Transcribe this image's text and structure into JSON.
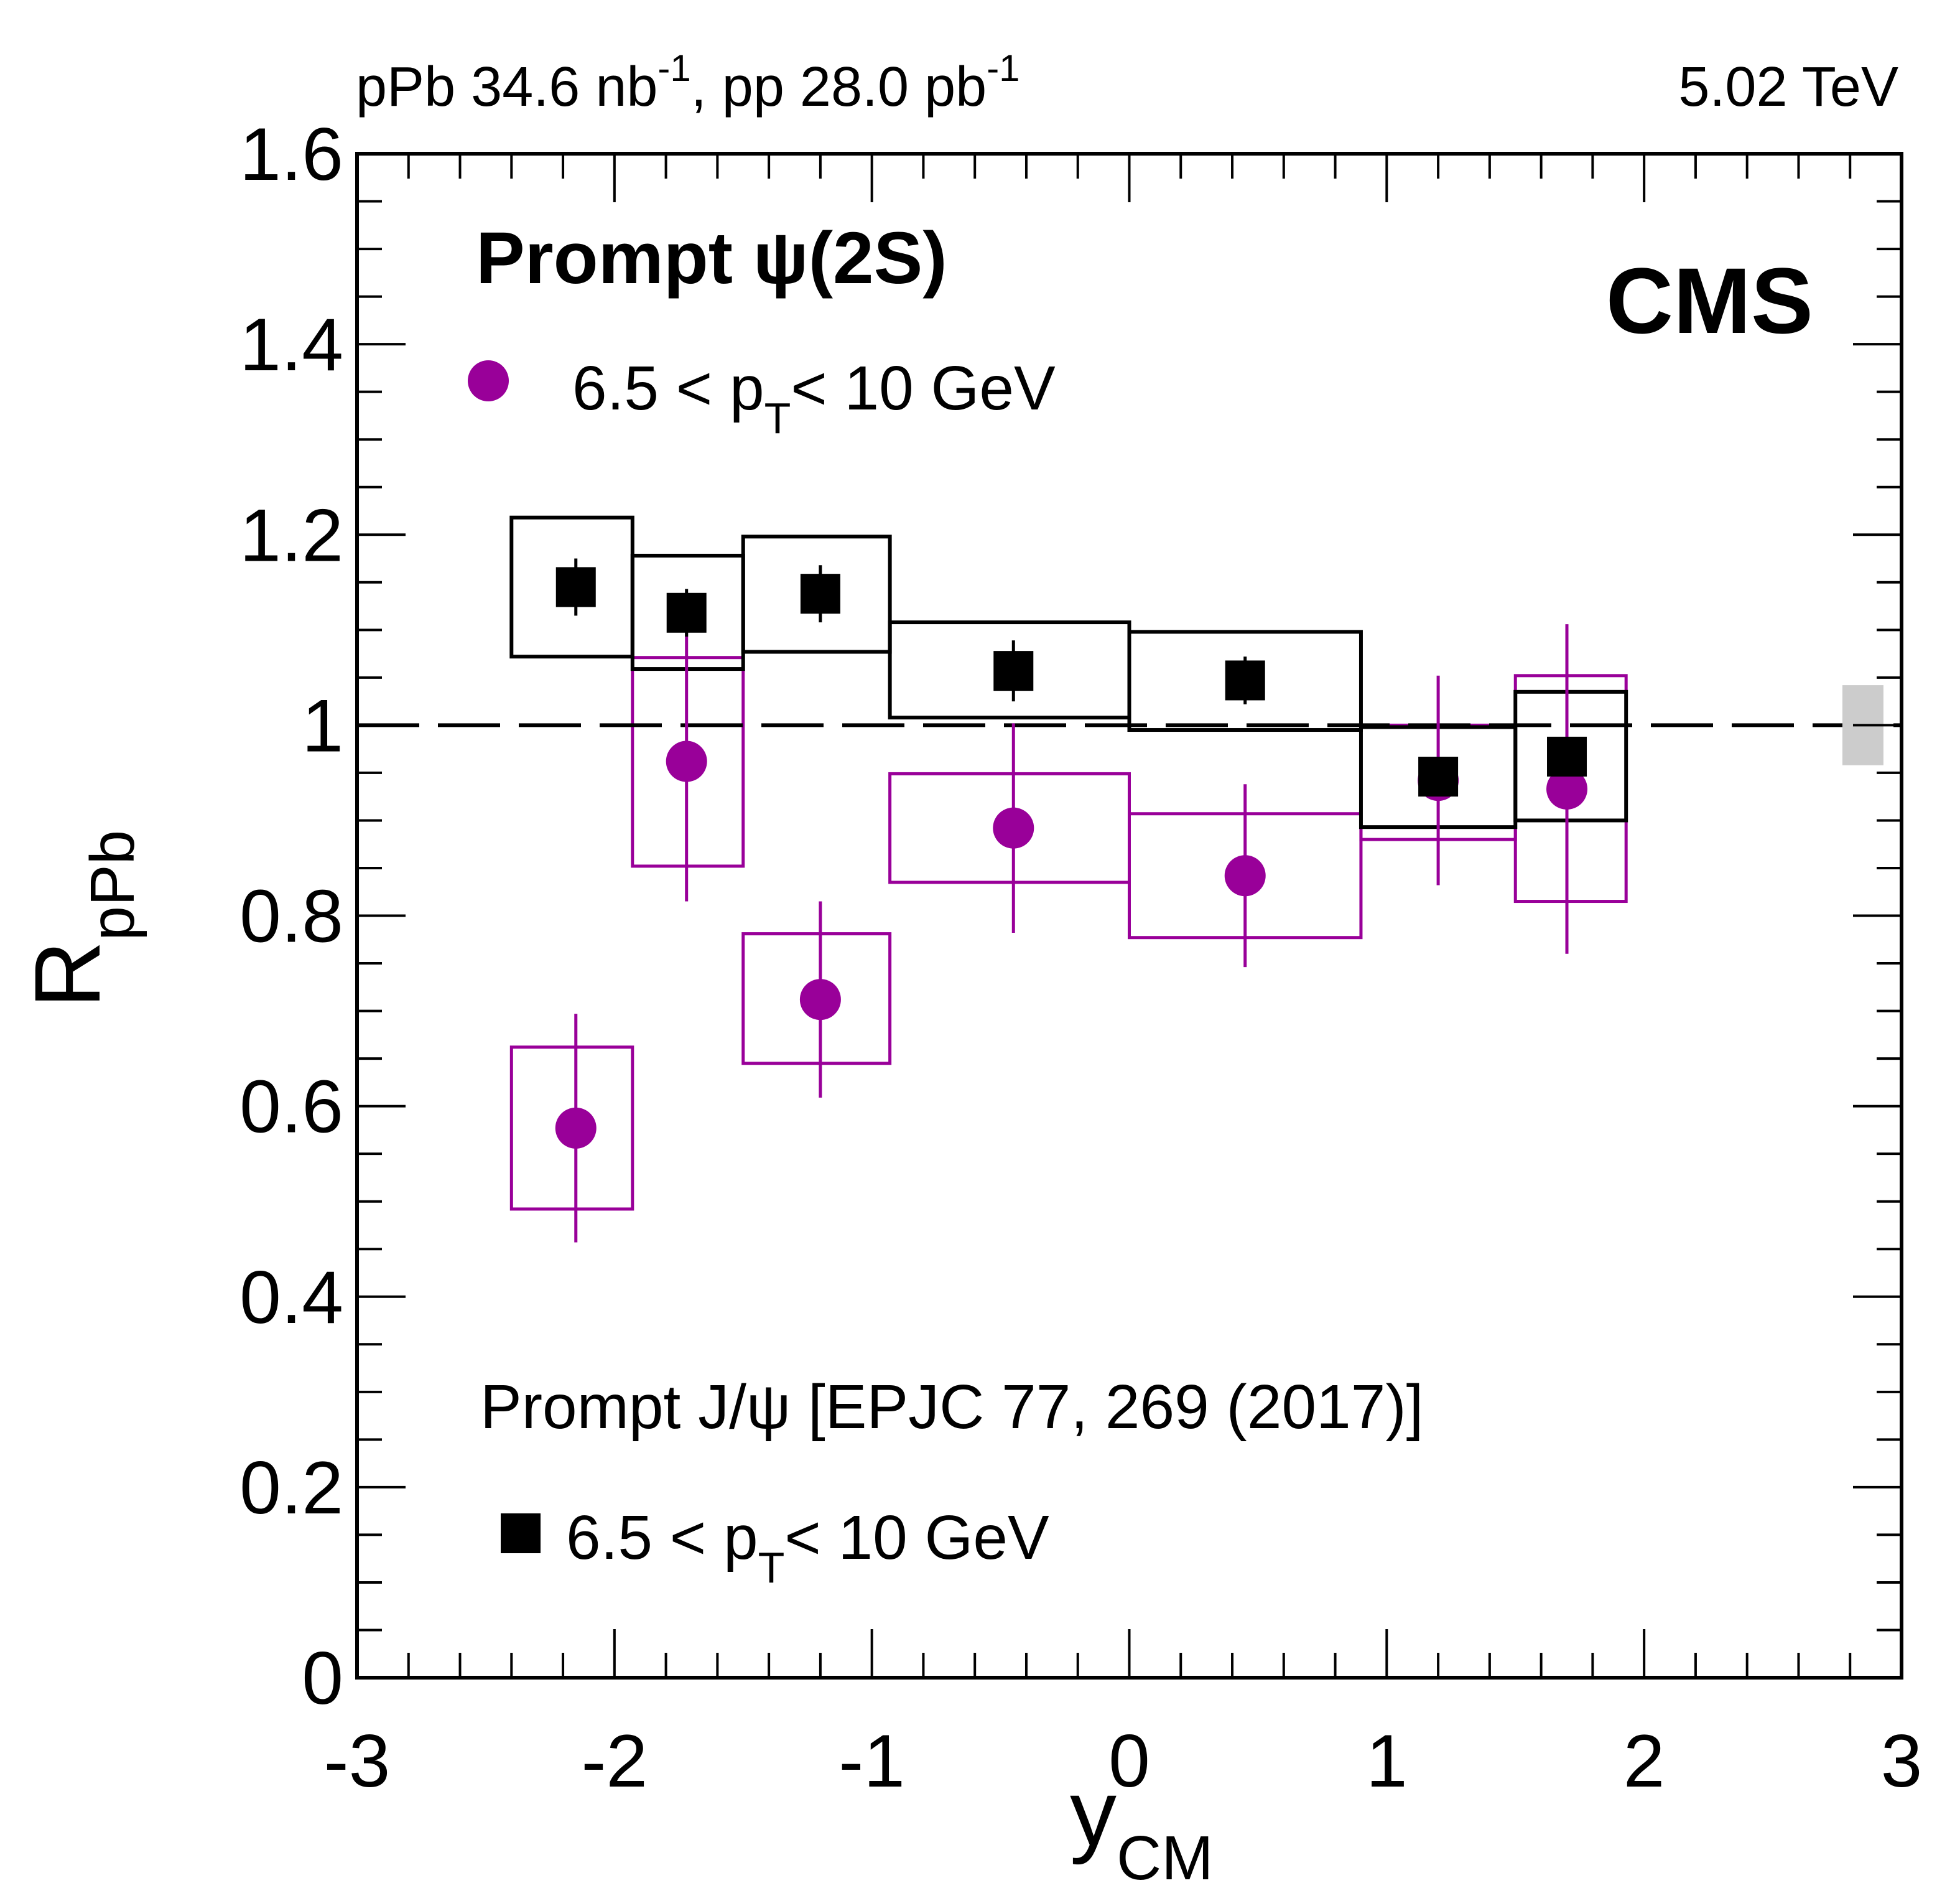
{
  "chart_data": {
    "type": "scatter",
    "title": "",
    "header_left": {
      "text_a": "pPb 34.6 nb",
      "sup_a": "-1",
      "text_b": ", pp 28.0 pb",
      "sup_b": "-1"
    },
    "header_right": "5.02 TeV",
    "experiment_label": "CMS",
    "xlabel": {
      "main": "y",
      "sub": "CM"
    },
    "ylabel": {
      "main": "R",
      "sub": "pPb"
    },
    "xlim": [
      -3,
      3
    ],
    "ylim": [
      0,
      1.6
    ],
    "x_ticks": [
      "-3",
      "-2",
      "-1",
      "0",
      "1",
      "2",
      "3"
    ],
    "y_ticks": [
      "0",
      "0.2",
      "0.4",
      "0.6",
      "0.8",
      "1",
      "1.2",
      "1.4",
      "1.6"
    ],
    "reference_line": {
      "y": 1,
      "style": "dashed"
    },
    "global_uncertainty": {
      "x": 2.85,
      "low": 0.958,
      "high": 1.042,
      "color": "#cccccc"
    },
    "legend_psi2s": {
      "title": "Prompt  ψ(2S)",
      "entry_pre": "6.5 < p",
      "entry_sub": "T",
      "entry_post": "< 10 GeV"
    },
    "legend_jpsi": {
      "title": "Prompt J/ψ [EPJC 77, 269 (2017)]",
      "entry_pre": "6.5 < p",
      "entry_sub": "T",
      "entry_post": "< 10 GeV"
    },
    "series": [
      {
        "name": "Prompt psi(2S), 6.5 < pT < 10 GeV",
        "marker": "circle",
        "color": "#990099",
        "points": [
          {
            "x": -2.15,
            "y": 0.577,
            "stat": 0.12,
            "xlo": -2.4,
            "xhi": -1.93,
            "syslo": 0.492,
            "syshi": 0.662
          },
          {
            "x": -1.72,
            "y": 0.962,
            "stat": 0.147,
            "xlo": -1.93,
            "xhi": -1.5,
            "syslo": 0.852,
            "syshi": 1.071
          },
          {
            "x": -1.2,
            "y": 0.712,
            "stat": 0.103,
            "xlo": -1.5,
            "xhi": -0.93,
            "syslo": 0.645,
            "syshi": 0.781
          },
          {
            "x": -0.45,
            "y": 0.892,
            "stat": 0.11,
            "xlo": -0.93,
            "xhi": 0.0,
            "syslo": 0.835,
            "syshi": 0.949
          },
          {
            "x": 0.45,
            "y": 0.842,
            "stat": 0.096,
            "xlo": 0.0,
            "xhi": 0.9,
            "syslo": 0.777,
            "syshi": 0.907
          },
          {
            "x": 1.2,
            "y": 0.942,
            "stat": 0.11,
            "xlo": 0.9,
            "xhi": 1.5,
            "syslo": 0.88,
            "syshi": 1.0
          },
          {
            "x": 1.7,
            "y": 0.933,
            "stat": 0.173,
            "xlo": 1.5,
            "xhi": 1.93,
            "syslo": 0.815,
            "syshi": 1.052
          }
        ]
      },
      {
        "name": "Prompt J/psi [EPJC 77, 269 (2017)], 6.5 < pT < 10 GeV",
        "marker": "square",
        "color": "#000000",
        "points": [
          {
            "x": -2.15,
            "y": 1.145,
            "stat": 0.03,
            "xlo": -2.4,
            "xhi": -1.93,
            "syslo": 1.072,
            "syshi": 1.218
          },
          {
            "x": -1.72,
            "y": 1.118,
            "stat": 0.025,
            "xlo": -1.93,
            "xhi": -1.5,
            "syslo": 1.059,
            "syshi": 1.178
          },
          {
            "x": -1.2,
            "y": 1.138,
            "stat": 0.03,
            "xlo": -1.5,
            "xhi": -0.93,
            "syslo": 1.077,
            "syshi": 1.198
          },
          {
            "x": -0.45,
            "y": 1.057,
            "stat": 0.032,
            "xlo": -0.93,
            "xhi": 0.0,
            "syslo": 1.008,
            "syshi": 1.108
          },
          {
            "x": 0.45,
            "y": 1.047,
            "stat": 0.025,
            "xlo": 0.0,
            "xhi": 0.9,
            "syslo": 0.995,
            "syshi": 1.098
          },
          {
            "x": 1.2,
            "y": 0.946,
            "stat": 0.02,
            "xlo": 0.9,
            "xhi": 1.5,
            "syslo": 0.893,
            "syshi": 0.998
          },
          {
            "x": 1.7,
            "y": 0.967,
            "stat": 0.02,
            "xlo": 1.5,
            "xhi": 1.93,
            "syslo": 0.9,
            "syshi": 1.035
          }
        ]
      }
    ],
    "legend": "top-left and bottom-left (inside plot)",
    "grid": false
  }
}
